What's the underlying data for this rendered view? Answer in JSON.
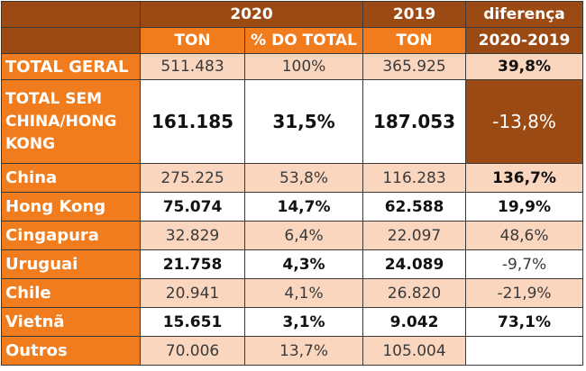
{
  "header": {
    "year_2020": "2020",
    "year_2019": "2019",
    "diff_line1": "diferença",
    "diff_line2": "2020-2019",
    "ton_label": "TON",
    "pct_label": "% DO TOTAL",
    "ton_label_2019": "TON"
  },
  "rows": [
    {
      "label": "TOTAL GERAL",
      "ton2020": "511.483",
      "pct": "100%",
      "ton2019": "365.925",
      "diff": "39,8%"
    },
    {
      "label": "TOTAL SEM CHINA/HONG KONG",
      "ton2020": "161.185",
      "pct": "31,5%",
      "ton2019": "187.053",
      "diff": "-13,8%"
    },
    {
      "label": "China",
      "ton2020": "275.225",
      "pct": "53,8%",
      "ton2019": "116.283",
      "diff": "136,7%"
    },
    {
      "label": "Hong Kong",
      "ton2020": "75.074",
      "pct": "14,7%",
      "ton2019": "62.588",
      "diff": "19,9%"
    },
    {
      "label": "Cingapura",
      "ton2020": "32.829",
      "pct": "6,4%",
      "ton2019": "22.097",
      "diff": "48,6%"
    },
    {
      "label": "Uruguai",
      "ton2020": "21.758",
      "pct": "4,3%",
      "ton2019": "24.089",
      "diff": "-9,7%"
    },
    {
      "label": "Chile",
      "ton2020": "20.941",
      "pct": "4,1%",
      "ton2019": "26.820",
      "diff": "-21,9%"
    },
    {
      "label": "Vietnã",
      "ton2020": "15.651",
      "pct": "3,1%",
      "ton2019": "9.042",
      "diff": "73,1%"
    },
    {
      "label": "Outros",
      "ton2020": "70.006",
      "pct": "13,7%",
      "ton2019": "105.004",
      "diff": ""
    }
  ],
  "colors": {
    "dark_brown": "#9c4a14",
    "orange": "#f07c1d",
    "peach": "#fbd6bf",
    "white": "#ffffff"
  }
}
